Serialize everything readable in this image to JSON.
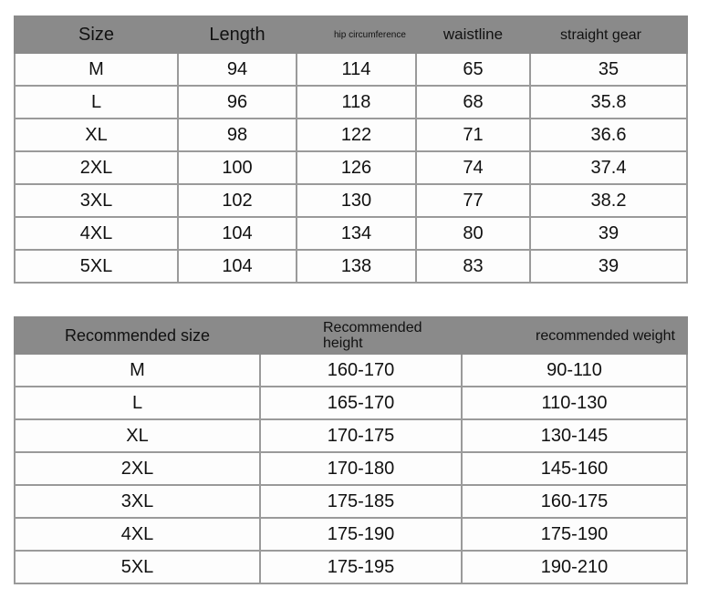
{
  "size_table": {
    "headers": [
      "Size",
      "Length",
      "hip circumference",
      "waistline",
      "straight gear"
    ],
    "rows": [
      [
        "M",
        "94",
        "114",
        "65",
        "35"
      ],
      [
        "L",
        "96",
        "118",
        "68",
        "35.8"
      ],
      [
        "XL",
        "98",
        "122",
        "71",
        "36.6"
      ],
      [
        "2XL",
        "100",
        "126",
        "74",
        "37.4"
      ],
      [
        "3XL",
        "102",
        "130",
        "77",
        "38.2"
      ],
      [
        "4XL",
        "104",
        "134",
        "80",
        "39"
      ],
      [
        "5XL",
        "104",
        "138",
        "83",
        "39"
      ]
    ]
  },
  "recommend_table": {
    "headers": [
      "Recommended size",
      "Recommended height",
      "recommended weight"
    ],
    "rows": [
      [
        "M",
        "160-170",
        "90-110"
      ],
      [
        "L",
        "165-170",
        "110-130"
      ],
      [
        "XL",
        "170-175",
        "130-145"
      ],
      [
        "2XL",
        "170-180",
        "145-160"
      ],
      [
        "3XL",
        "175-185",
        "160-175"
      ],
      [
        "4XL",
        "175-190",
        "175-190"
      ],
      [
        "5XL",
        "175-195",
        "190-210"
      ]
    ]
  }
}
